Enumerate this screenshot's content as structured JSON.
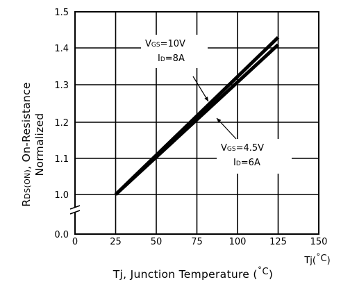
{
  "chart_data": {
    "type": "line",
    "title": "",
    "ylabel_line1": "R",
    "ylabel_line1_sub": "DS(ON)",
    "ylabel_line1_rest": ", On-Resistance",
    "ylabel_line2": "Normalized",
    "xlabel_main": "Tj, Junction Temperature (",
    "xlabel_unit": "˚C",
    "xlabel_close": ")",
    "x_unit_label_main": "Tj(",
    "x_unit_label_unit": "˚C",
    "x_unit_label_close": ")",
    "xlim": [
      0,
      150
    ],
    "ylim": [
      0.0,
      1.5
    ],
    "y_axis_break": true,
    "x_ticks": [
      "0",
      "25",
      "50",
      "75",
      "100",
      "125",
      "150"
    ],
    "y_ticks": [
      "0.0",
      "1.0",
      "1.1",
      "1.2",
      "1.3",
      "1.4",
      "1.5"
    ],
    "grid": true,
    "series": [
      {
        "x": [
          25,
          125
        ],
        "y": [
          1.0,
          1.43
        ]
      },
      {
        "x": [
          25,
          125
        ],
        "y": [
          1.0,
          1.41
        ]
      }
    ],
    "annotations": [
      {
        "line1_main": "V",
        "line1_sub": "GS",
        "line1_rest": "=10V",
        "line2_main": "I",
        "line2_sub": "D",
        "line2_rest": "=8A"
      },
      {
        "line1_main": "V",
        "line1_sub": "GS",
        "line1_rest": "=4.5V",
        "line2_main": "I",
        "line2_sub": "D",
        "line2_rest": "=6A"
      }
    ]
  }
}
